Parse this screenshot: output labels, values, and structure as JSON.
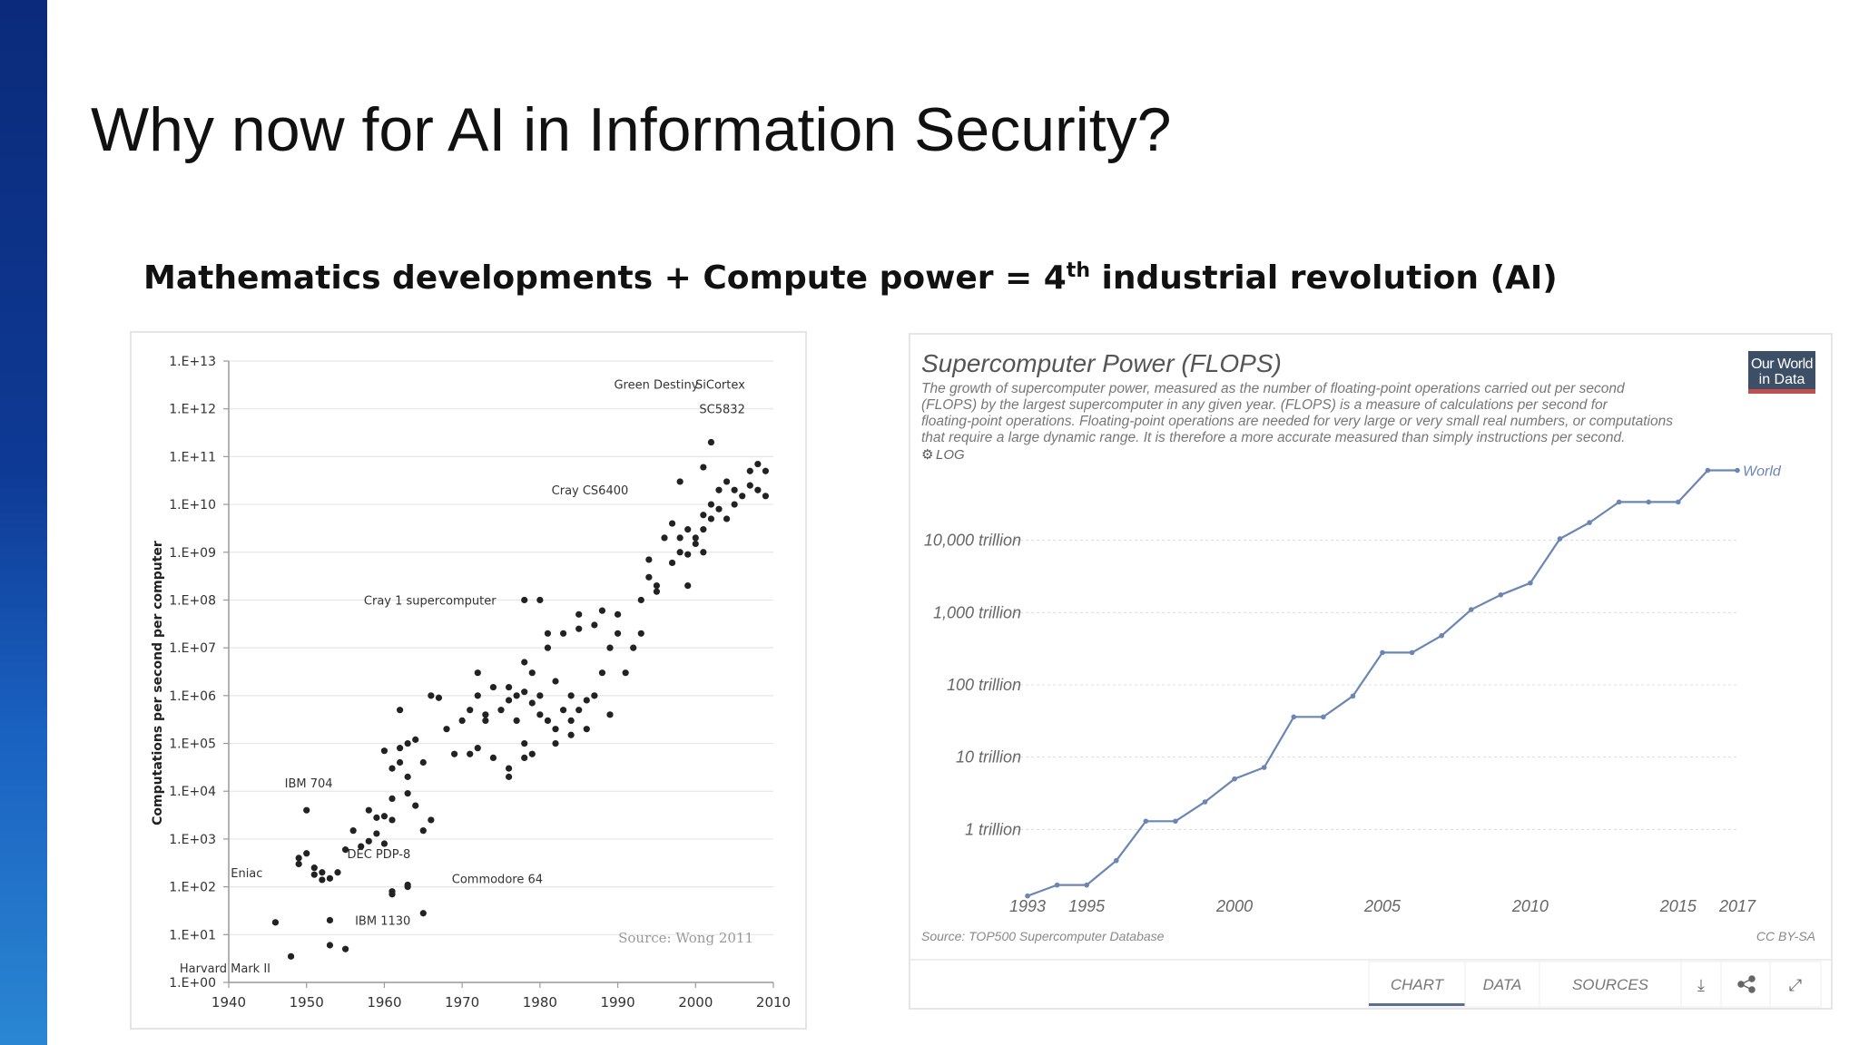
{
  "slide": {
    "title": "Why now for AI in Information Security?",
    "subtitle_pre": "Mathematics developments + Compute power = 4",
    "subtitle_sup": "th",
    "subtitle_post": " industrial revolution (AI)"
  },
  "colors": {
    "sidebar": "#0e3a95",
    "line": "#6b86b3",
    "accent": "#c0504d",
    "logo_bg": "#3d4f66"
  },
  "chart_data": [
    {
      "type": "scatter",
      "title": "",
      "xlabel": "",
      "ylabel": "Computations per second per computer",
      "xlim": [
        1940,
        2010
      ],
      "ylim_log10": [
        0,
        13
      ],
      "log_scale_y": true,
      "x_ticks": [
        "1940",
        "1950",
        "1960",
        "1970",
        "1980",
        "1990",
        "2000",
        "2010"
      ],
      "y_ticks": [
        "1.E+00",
        "1.E+01",
        "1.E+02",
        "1.E+03",
        "1.E+04",
        "1.E+05",
        "1.E+06",
        "1.E+07",
        "1.E+08",
        "1.E+09",
        "1.E+10",
        "1.E+11",
        "1.E+12",
        "1.E+13"
      ],
      "source": "Source: Wong 2011",
      "annotations": [
        {
          "text": "Green Destiny",
          "x": 2002,
          "y": 3300000000000.0
        },
        {
          "text": "SiCortex",
          "x": 2008,
          "y": 3300000000000.0
        },
        {
          "text": "SC5832",
          "x": 2008,
          "y": 1000000000000.0
        },
        {
          "text": "Cray CS6400",
          "x": 1993,
          "y": 20000000000.0
        },
        {
          "text": "Cray 1 supercomputer",
          "x": 1976,
          "y": 100000000.0
        },
        {
          "text": "IBM 704",
          "x": 1955,
          "y": 15000.0
        },
        {
          "text": "DEC PDP-8",
          "x": 1965,
          "y": 500.0
        },
        {
          "text": "Commodore 64",
          "x": 1982,
          "y": 150.0
        },
        {
          "text": "Eniac",
          "x": 1946,
          "y": 200
        },
        {
          "text": "IBM 1130",
          "x": 1965,
          "y": 20
        },
        {
          "text": "Harvard Mark II",
          "x": 1947,
          "y": 2
        }
      ],
      "points": [
        [
          1946,
          18
        ],
        [
          1948,
          3.5
        ],
        [
          1949,
          400
        ],
        [
          1950,
          500
        ],
        [
          1949,
          300
        ],
        [
          1950,
          4000
        ],
        [
          1951,
          250
        ],
        [
          1952,
          200
        ],
        [
          1951,
          180
        ],
        [
          1953,
          150
        ],
        [
          1952,
          140
        ],
        [
          1954,
          200
        ],
        [
          1953,
          20
        ],
        [
          1953,
          6
        ],
        [
          1955,
          5
        ],
        [
          1955,
          600
        ],
        [
          1956,
          1500
        ],
        [
          1957,
          700
        ],
        [
          1958,
          4000
        ],
        [
          1958,
          900
        ],
        [
          1959,
          2800
        ],
        [
          1959,
          1300
        ],
        [
          1960,
          3000
        ],
        [
          1960,
          800
        ],
        [
          1961,
          2500
        ],
        [
          1960,
          70000
        ],
        [
          1961,
          30000
        ],
        [
          1961,
          7000
        ],
        [
          1962,
          40000
        ],
        [
          1962,
          80000
        ],
        [
          1963,
          20000
        ],
        [
          1962,
          500000
        ],
        [
          1963,
          100000
        ],
        [
          1963,
          9000
        ],
        [
          1964,
          120000
        ],
        [
          1964,
          5000
        ],
        [
          1965,
          40000
        ],
        [
          1965,
          1500
        ],
        [
          1966,
          1000000
        ],
        [
          1967,
          900000
        ],
        [
          1966,
          2500
        ],
        [
          1961,
          80
        ],
        [
          1961,
          70
        ],
        [
          1963,
          100
        ],
        [
          1963,
          110
        ],
        [
          1965,
          28
        ],
        [
          1968,
          200000
        ],
        [
          1969,
          60000
        ],
        [
          1970,
          300000
        ],
        [
          1971,
          500000
        ],
        [
          1971,
          60000
        ],
        [
          1972,
          3000000
        ],
        [
          1972,
          1000000
        ],
        [
          1973,
          400000
        ],
        [
          1973,
          300000
        ],
        [
          1974,
          1500000
        ],
        [
          1974,
          50000
        ],
        [
          1975,
          500000
        ],
        [
          1976,
          1500000
        ],
        [
          1976,
          800000
        ],
        [
          1976,
          30000
        ],
        [
          1976,
          20000
        ],
        [
          1977,
          1000000
        ],
        [
          1977,
          300000
        ],
        [
          1978,
          5000000
        ],
        [
          1978,
          1200000
        ],
        [
          1978,
          100000
        ],
        [
          1978,
          50000
        ],
        [
          1979,
          3000000
        ],
        [
          1979,
          700000
        ],
        [
          1979,
          60000
        ],
        [
          1980,
          1000000
        ],
        [
          1980,
          400000
        ],
        [
          1981,
          300000
        ],
        [
          1981,
          20000000
        ],
        [
          1981,
          10000000
        ],
        [
          1982,
          2000000
        ],
        [
          1982,
          200000
        ],
        [
          1982,
          100000
        ],
        [
          1983,
          500000
        ],
        [
          1983,
          20000000
        ],
        [
          1984,
          1000000
        ],
        [
          1984,
          300000
        ],
        [
          1985,
          500000
        ],
        [
          1985,
          50000000
        ],
        [
          1985,
          25000000
        ],
        [
          1986,
          800000
        ],
        [
          1986,
          200000
        ],
        [
          1987,
          1000000
        ],
        [
          1987,
          30000000
        ],
        [
          1988,
          3000000
        ],
        [
          1988,
          60000000
        ],
        [
          1989,
          400000
        ],
        [
          1989,
          10000000
        ],
        [
          1990,
          20000000
        ],
        [
          1990,
          50000000
        ],
        [
          1991,
          3000000
        ],
        [
          1992,
          10000000
        ],
        [
          1993,
          20000000
        ],
        [
          1993,
          100000000
        ],
        [
          1994,
          300000000
        ],
        [
          1994,
          700000000
        ],
        [
          1995,
          200000000
        ],
        [
          1995,
          150000000
        ],
        [
          1996,
          2000000000
        ],
        [
          1997,
          4000000000
        ],
        [
          1997,
          600000000
        ],
        [
          1998,
          1000000000
        ],
        [
          1998,
          2000000000
        ],
        [
          1999,
          3000000000
        ],
        [
          1999,
          200000000
        ],
        [
          1999,
          900000000
        ],
        [
          2000,
          2000000000
        ],
        [
          2000,
          1500000000
        ],
        [
          2001,
          3000000000
        ],
        [
          2001,
          6000000000
        ],
        [
          2001,
          1000000000
        ],
        [
          2002,
          10000000000
        ],
        [
          2002,
          5000000000
        ],
        [
          2003,
          20000000000
        ],
        [
          2003,
          8000000000
        ],
        [
          2004,
          5000000000
        ],
        [
          2004,
          30000000000
        ],
        [
          2005,
          10000000000
        ],
        [
          2005,
          20000000000
        ],
        [
          2006,
          15000000000
        ],
        [
          2007,
          50000000000
        ],
        [
          2007,
          25000000000
        ],
        [
          2008,
          70000000000
        ],
        [
          2008,
          20000000000
        ],
        [
          2009,
          50000000000
        ],
        [
          2009,
          15000000000
        ],
        [
          2002,
          200000000000
        ],
        [
          2001,
          60000000000
        ],
        [
          1998,
          30000000000
        ],
        [
          1978,
          100000000
        ],
        [
          1980,
          100000000
        ],
        [
          1984,
          150000
        ],
        [
          1972,
          80000
        ]
      ]
    },
    {
      "type": "line",
      "title": "Supercomputer Power (FLOPS)",
      "description_lines": [
        "The growth of supercomputer power, measured as the number of floating-point operations carried out per second",
        "(FLOPS) by the largest supercomputer in any given year. (FLOPS) is a measure of calculations per second for",
        "floating-point operations. Floating-point operations are needed for very large or very small real numbers, or computations",
        "that require a large dynamic range. It is therefore a more accurate measured than simply instructions per second."
      ],
      "log_toggle": "LOG",
      "logo": [
        "Our World",
        "in Data"
      ],
      "series_name": "World",
      "log_scale_y": true,
      "y_ticks": [
        {
          "label": "1 trillion",
          "value": 1000000000000.0
        },
        {
          "label": "10 trillion",
          "value": 10000000000000.0
        },
        {
          "label": "100 trillion",
          "value": 100000000000000.0
        },
        {
          "label": "1,000 trillion",
          "value": 1000000000000000.0
        },
        {
          "label": "10,000 trillion",
          "value": 1e+16
        }
      ],
      "x_ticks": [
        "1993",
        "1995",
        "2000",
        "2005",
        "2010",
        "2015",
        "2017"
      ],
      "x": [
        1993,
        1994,
        1995,
        1996,
        1997,
        1998,
        1999,
        2000,
        2001,
        2002,
        2003,
        2004,
        2005,
        2006,
        2007,
        2008,
        2009,
        2010,
        2011,
        2012,
        2013,
        2014,
        2015,
        2016,
        2017
      ],
      "values": [
        120000000000.0,
        170000000000.0,
        170000000000.0,
        370000000000.0,
        1300000000000.0,
        1300000000000.0,
        2400000000000.0,
        5000000000000.0,
        7200000000000.0,
        36000000000000.0,
        36000000000000.0,
        70000000000000.0,
        280000000000000.0,
        280000000000000.0,
        480000000000000.0,
        1100000000000000.0,
        1760000000000000.0,
        2570000000000000.0,
        1.05e+16,
        1.76e+16,
        3.39e+16,
        3.39e+16,
        3.39e+16,
        9.3e+16,
        9.3e+16
      ],
      "source": "Source: TOP500 Supercomputer Database",
      "license": "CC BY-SA",
      "tabs": [
        "CHART",
        "DATA",
        "SOURCES"
      ],
      "active_tab": "CHART"
    }
  ]
}
